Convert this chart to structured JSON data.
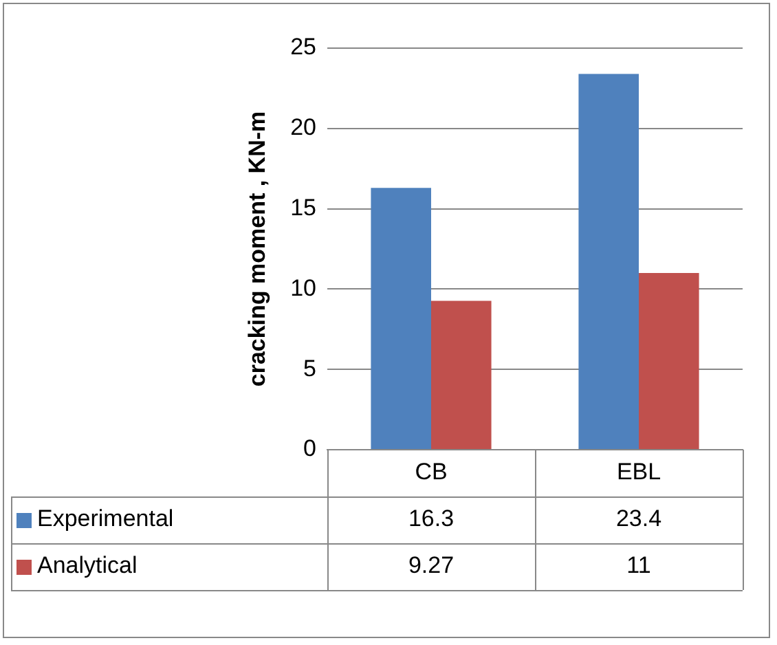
{
  "chart_data": {
    "type": "bar",
    "ylabel": "cracking moment , KN-m",
    "categories": [
      "CB",
      "EBL"
    ],
    "series": [
      {
        "name": "Experimental",
        "color": "#4f81bd",
        "values": [
          16.3,
          23.4
        ]
      },
      {
        "name": "Analytical",
        "color": "#c0504d",
        "values": [
          9.27,
          11
        ]
      }
    ],
    "ylim": [
      0,
      25
    ],
    "yticks": [
      0,
      5,
      10,
      15,
      20,
      25
    ],
    "grid": "y",
    "legend": "bottom",
    "data_labels": true
  }
}
